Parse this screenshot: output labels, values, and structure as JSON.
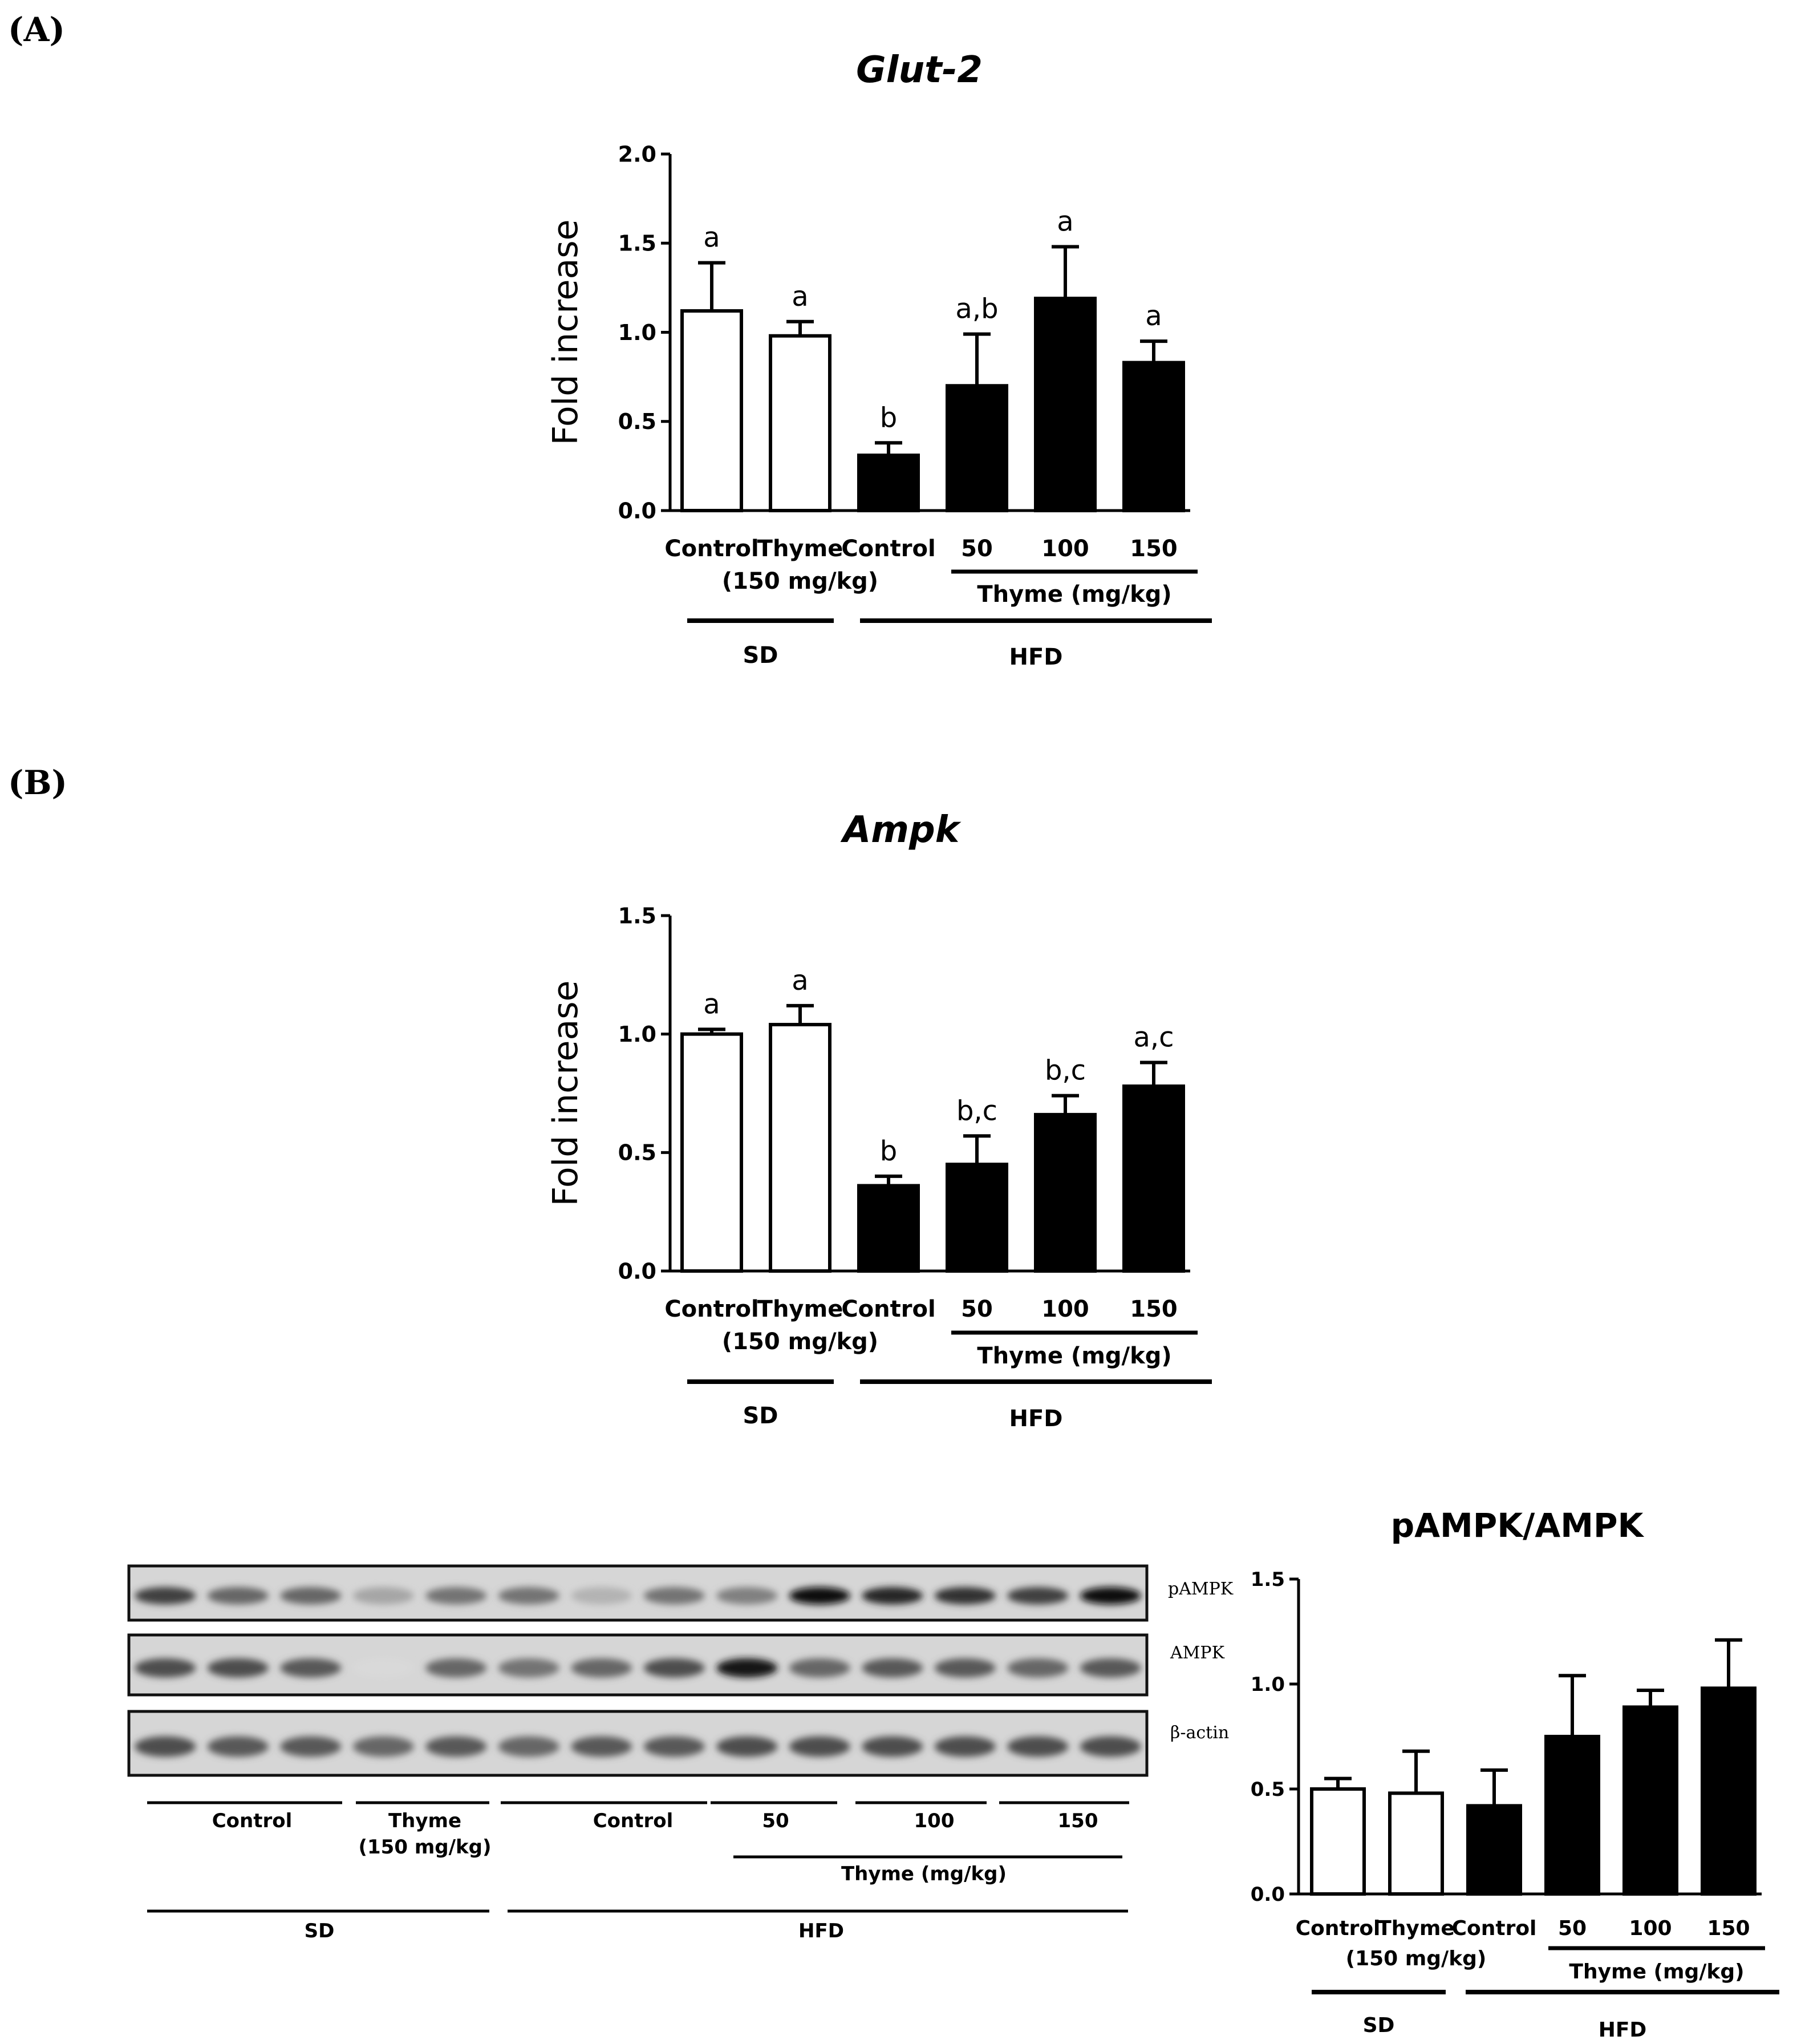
{
  "panel_labels": {
    "a": "(A)",
    "b": "(B)"
  },
  "colors": {
    "control_fill": "#ffffff",
    "hfd_fill": "#000000",
    "axis": "#000000"
  },
  "chart_data": [
    {
      "type": "bar",
      "title": "Glut-2",
      "ylabel": "Fold increase",
      "ylim": [
        0,
        2.0
      ],
      "yticks": [
        "0.0",
        "0.5",
        "1.0",
        "1.5",
        "2.0"
      ],
      "categories": [
        "Control",
        "Thyme",
        "Control",
        "50",
        "100",
        "150"
      ],
      "category_sublabels": [
        "",
        "(150 mg/kg)",
        "",
        "",
        "",
        ""
      ],
      "values": [
        1.12,
        0.98,
        0.31,
        0.7,
        1.19,
        0.83
      ],
      "errors": [
        0.27,
        0.08,
        0.07,
        0.29,
        0.29,
        0.12
      ],
      "fills": [
        "white",
        "white",
        "black",
        "black",
        "black",
        "black"
      ],
      "annotations": [
        "a",
        "a",
        "b",
        "a,b",
        "a",
        "a"
      ],
      "dose_group_label": "Thyme (mg/kg)",
      "diet_groups": [
        "SD",
        "HFD"
      ]
    },
    {
      "type": "bar",
      "title": "Ampk",
      "ylabel": "Fold increase",
      "ylim": [
        0,
        1.5
      ],
      "yticks": [
        "0.0",
        "0.5",
        "1.0",
        "1.5"
      ],
      "categories": [
        "Control",
        "Thyme",
        "Control",
        "50",
        "100",
        "150"
      ],
      "category_sublabels": [
        "",
        "(150 mg/kg)",
        "",
        "",
        "",
        ""
      ],
      "values": [
        1.0,
        1.04,
        0.36,
        0.45,
        0.66,
        0.78
      ],
      "errors": [
        0.02,
        0.08,
        0.04,
        0.12,
        0.08,
        0.1
      ],
      "fills": [
        "white",
        "white",
        "black",
        "black",
        "black",
        "black"
      ],
      "annotations": [
        "a",
        "a",
        "b",
        "b,c",
        "b,c",
        "a,c"
      ],
      "dose_group_label": "Thyme (mg/kg)",
      "diet_groups": [
        "SD",
        "HFD"
      ]
    },
    {
      "type": "bar",
      "title": "pAMPK/AMPK",
      "ylabel": "",
      "ylim": [
        0,
        1.5
      ],
      "yticks": [
        "0.0",
        "0.5",
        "1.0",
        "1.5"
      ],
      "categories": [
        "Control",
        "Thyme",
        "Control",
        "50",
        "100",
        "150"
      ],
      "category_sublabels": [
        "",
        "(150 mg/kg)",
        "",
        "",
        "",
        ""
      ],
      "values": [
        0.5,
        0.48,
        0.42,
        0.75,
        0.89,
        0.98
      ],
      "errors": [
        0.05,
        0.2,
        0.17,
        0.29,
        0.08,
        0.23
      ],
      "fills": [
        "white",
        "white",
        "black",
        "black",
        "black",
        "black"
      ],
      "annotations": [
        "",
        "",
        "",
        "",
        "",
        ""
      ],
      "dose_group_label": "Thyme (mg/kg)",
      "diet_groups": [
        "SD",
        "HFD"
      ]
    }
  ],
  "western_blot": {
    "bands": [
      "pAMPK",
      "AMPK",
      "β-actin"
    ],
    "lane_groups": [
      "Control",
      "Thyme",
      "(150 mg/kg)",
      "Control",
      "50",
      "100",
      "150"
    ],
    "dose_group_label": "Thyme (mg/kg)",
    "diet_groups": [
      "SD",
      "HFD"
    ]
  }
}
